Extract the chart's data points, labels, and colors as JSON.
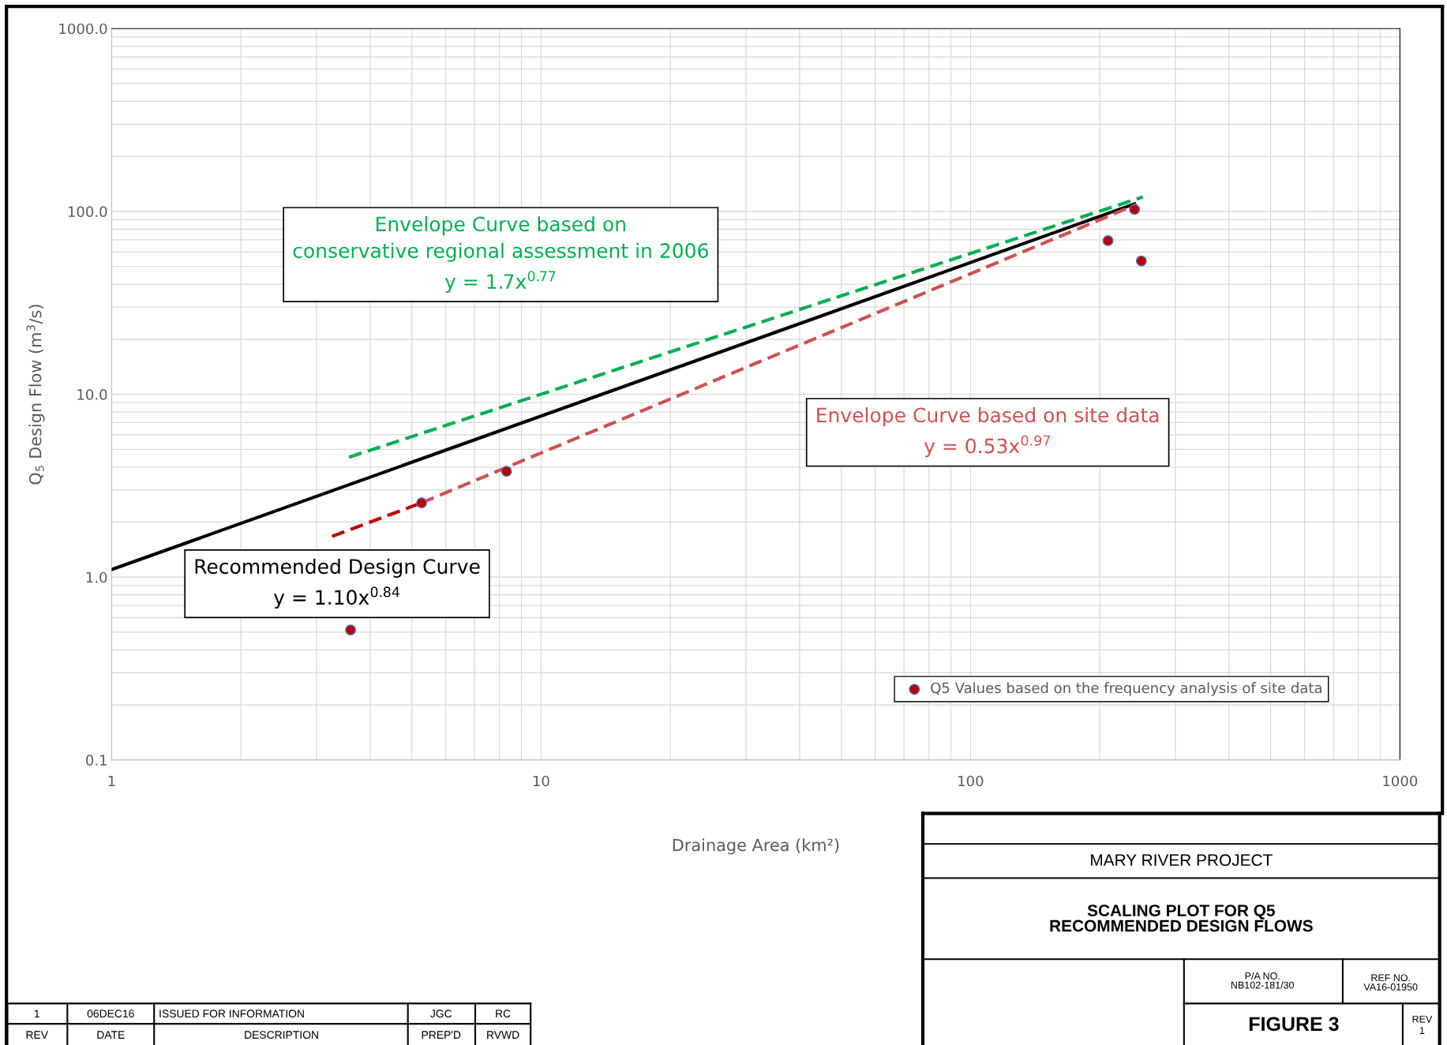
{
  "chart_data": {
    "type": "scatter",
    "xlabel": "Drainage Area (km²)",
    "ylabel": "Q$_{5}$ Design Flow (m$^{3}$/s)",
    "log": "xy",
    "xlim": [
      1,
      1000
    ],
    "ylim": [
      0.1,
      1000
    ],
    "xticks": [
      1,
      10,
      100,
      1000
    ],
    "yticks": [
      {
        "value": 0.1,
        "label": "0.1"
      },
      {
        "value": 1,
        "label": "1.0"
      },
      {
        "value": 10,
        "label": "10.0"
      },
      {
        "value": 100,
        "label": "100.0"
      },
      {
        "value": 1000,
        "label": "1000.0"
      }
    ],
    "grid": true,
    "legend": "bottom right",
    "series": [
      {
        "type": "line",
        "name": "Envelope Curve based on\nconservative regional assessment in 2006\ny = 1.7x$^{0.77}$",
        "color": "#00b050",
        "line_style": "dashed",
        "marker": "none",
        "x": [
          3.57,
          252
        ],
        "values": [
          4.53,
          120
        ]
      },
      {
        "type": "line",
        "name": "Recommended Design Curve\ny = 1.10x$^{0.84}$",
        "color": "#000000",
        "line_style": "solid",
        "marker": "none",
        "x": [
          1,
          241
        ],
        "values": [
          1.1,
          110
        ]
      },
      {
        "type": "line",
        "color": "#c00000",
        "line_style": "dashed",
        "marker": "none",
        "x": [
          3.26,
          5.27
        ],
        "values": [
          1.67,
          2.55
        ]
      },
      {
        "type": "line",
        "name": "Envelope Curve based on site data\ny = 0.53x$^{0.97}$",
        "color": "#d05050",
        "line_style": "dashed",
        "marker": "none",
        "x": [
          5.27,
          243
        ],
        "values": [
          2.55,
          109
        ]
      },
      {
        "name": "Q5 Values based on the frequency analysis of site data",
        "color": "#c00000",
        "marker": "circle",
        "x": [
          3.6,
          5.27,
          8.31,
          209,
          241,
          250
        ],
        "values": [
          0.514,
          2.55,
          3.79,
          69.2,
          102.6,
          53.6
        ]
      }
    ],
    "annotations": [
      "MARY RIVER PROJECT",
      "SCALING PLOT FOR Q5\nRECOMMENDED DESIGN FLOWS",
      "P/A NO.\nNB102-181/30",
      "REF NO.\nVA16-01950",
      "FIGURE 3",
      "REV\n1",
      "1",
      "06DEC16",
      "ISSUED FOR INFORMATION",
      "JGC",
      "RC",
      "REV",
      "DATE",
      "DESCRIPTION",
      "PREP'D",
      "RVWD"
    ]
  }
}
